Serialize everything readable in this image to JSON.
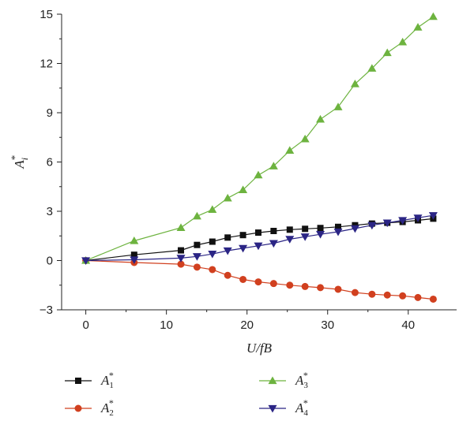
{
  "chart_data": {
    "type": "line",
    "xlabel": "U/fB",
    "ylabel": {
      "base": "A",
      "sub": "i",
      "sup": "*"
    },
    "xlim": [
      -3,
      46
    ],
    "ylim": [
      -3,
      15
    ],
    "xticks": [
      0,
      10,
      20,
      30,
      40
    ],
    "yticks": [
      -3,
      0,
      3,
      6,
      9,
      12,
      15
    ],
    "ytick_labels": [
      "−3",
      "0",
      "3",
      "6",
      "9",
      "12",
      "15"
    ],
    "grid": false,
    "legend_position": "bottom",
    "series": [
      {
        "name": "A1*",
        "base": "A",
        "sub": "1",
        "sup": "*",
        "color": "#111111",
        "marker": "square",
        "x": [
          0,
          6,
          11.8,
          13.8,
          15.7,
          17.6,
          19.5,
          21.4,
          23.3,
          25.3,
          27.2,
          29.1,
          31.3,
          33.4,
          35.5,
          37.4,
          39.3,
          41.2,
          43.1
        ],
        "y": [
          0,
          0.35,
          0.62,
          0.95,
          1.15,
          1.4,
          1.55,
          1.7,
          1.8,
          1.88,
          1.93,
          1.98,
          2.05,
          2.15,
          2.25,
          2.3,
          2.35,
          2.45,
          2.55
        ]
      },
      {
        "name": "A2*",
        "base": "A",
        "sub": "2",
        "sup": "*",
        "color": "#d1401f",
        "marker": "circle",
        "x": [
          0,
          6,
          11.8,
          13.8,
          15.7,
          17.6,
          19.5,
          21.4,
          23.3,
          25.3,
          27.2,
          29.1,
          31.3,
          33.4,
          35.5,
          37.4,
          39.3,
          41.2,
          43.1
        ],
        "y": [
          0,
          -0.12,
          -0.22,
          -0.4,
          -0.55,
          -0.9,
          -1.15,
          -1.3,
          -1.4,
          -1.5,
          -1.58,
          -1.65,
          -1.75,
          -1.95,
          -2.05,
          -2.1,
          -2.15,
          -2.25,
          -2.35
        ]
      },
      {
        "name": "A3*",
        "base": "A",
        "sub": "3",
        "sup": "*",
        "color": "#6db33f",
        "marker": "triangle-up",
        "x": [
          0,
          6,
          11.8,
          13.8,
          15.7,
          17.6,
          19.5,
          21.4,
          23.3,
          25.3,
          27.2,
          29.1,
          31.3,
          33.4,
          35.5,
          37.4,
          39.3,
          41.2,
          43.1
        ],
        "y": [
          0,
          1.2,
          2.0,
          2.7,
          3.1,
          3.8,
          4.3,
          5.2,
          5.75,
          6.7,
          7.4,
          8.6,
          9.35,
          10.75,
          11.7,
          12.65,
          13.3,
          14.2,
          14.85
        ]
      },
      {
        "name": "A4*",
        "base": "A",
        "sub": "4",
        "sup": "*",
        "color": "#2b2585",
        "marker": "triangle-down",
        "x": [
          0,
          6,
          11.8,
          13.8,
          15.7,
          17.6,
          19.5,
          21.4,
          23.3,
          25.3,
          27.2,
          29.1,
          31.3,
          33.4,
          35.5,
          37.4,
          39.3,
          41.2,
          43.1
        ],
        "y": [
          0,
          0.05,
          0.15,
          0.25,
          0.4,
          0.6,
          0.75,
          0.9,
          1.05,
          1.3,
          1.45,
          1.6,
          1.75,
          1.95,
          2.15,
          2.3,
          2.45,
          2.6,
          2.75
        ]
      }
    ]
  }
}
